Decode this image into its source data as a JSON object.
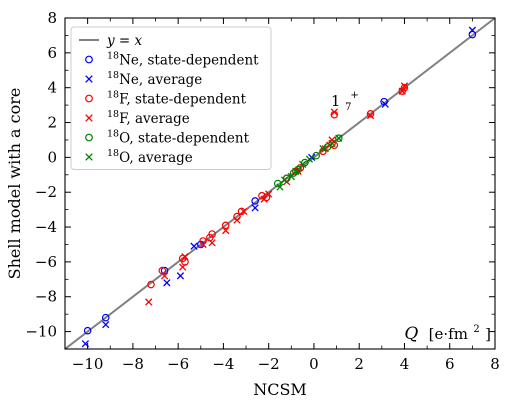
{
  "chart_data": {
    "type": "scatter",
    "xlabel": "NCSM",
    "ylabel": "Shell model with a core",
    "corner_label_main": "Q",
    "corner_label_unit_open": "[e·fm",
    "corner_label_unit_exp": "2",
    "corner_label_unit_close": "]",
    "xlim": [
      -11,
      8
    ],
    "ylim": [
      -11,
      8
    ],
    "xticks": [
      -10,
      -8,
      -6,
      -4,
      -2,
      0,
      2,
      4,
      6,
      8
    ],
    "yticks": [
      -10,
      -8,
      -6,
      -4,
      -2,
      0,
      2,
      4,
      6,
      8
    ],
    "xtick_labels": [
      "−10",
      "−8",
      "−6",
      "−4",
      "−2",
      "0",
      "2",
      "4",
      "6",
      "8"
    ],
    "ytick_labels": [
      "−10",
      "−8",
      "−6",
      "−4",
      "−2",
      "0",
      "2",
      "4",
      "6",
      "8"
    ],
    "grid": false,
    "legend_position": "top-left",
    "reference_line": {
      "name": "y = x",
      "name_italic_1": "y",
      "name_mid": " = ",
      "name_italic_2": "x",
      "color": "#808080"
    },
    "annotation": {
      "text": "1",
      "sub": "7",
      "sup": "+",
      "x": 1.1,
      "y": 2.95
    },
    "series": [
      {
        "name": "Ne, state-dependent",
        "iso_mass": "18",
        "marker": "circle",
        "color": "#0000ff",
        "points": [
          [
            -10,
            -9.95
          ],
          [
            -9.2,
            -9.2
          ],
          [
            -6.6,
            -6.5
          ],
          [
            -5,
            -5
          ],
          [
            -2.6,
            -2.5
          ],
          [
            3.1,
            3.2
          ],
          [
            7,
            7.05
          ]
        ]
      },
      {
        "name": "Ne, average",
        "iso_mass": "18",
        "marker": "x",
        "color": "#0000ff",
        "points": [
          [
            -10.1,
            -10.7
          ],
          [
            -9.2,
            -9.6
          ],
          [
            -6.5,
            -7.2
          ],
          [
            -5.9,
            -6.8
          ],
          [
            -5.3,
            -5.1
          ],
          [
            -2.6,
            -2.9
          ],
          [
            -0.1,
            0
          ],
          [
            3.15,
            3.05
          ],
          [
            7,
            7.3
          ]
        ]
      },
      {
        "name": "F, state-dependent",
        "iso_mass": "18",
        "marker": "circle",
        "color": "#ff0000",
        "points": [
          [
            -7.2,
            -7.3
          ],
          [
            -6.7,
            -6.5
          ],
          [
            -5.8,
            -5.8
          ],
          [
            -5.7,
            -6
          ],
          [
            -4.9,
            -4.8
          ],
          [
            -4.6,
            -4.6
          ],
          [
            -4.5,
            -4.4
          ],
          [
            -3.9,
            -3.9
          ],
          [
            -3.4,
            -3.4
          ],
          [
            -3.2,
            -3.1
          ],
          [
            -2.3,
            -2.2
          ],
          [
            -2.1,
            -2.3
          ],
          [
            -1.2,
            -1.2
          ],
          [
            -0.8,
            -0.8
          ],
          [
            -0.6,
            -0.6
          ],
          [
            0.4,
            0.35
          ],
          [
            0.8,
            0.8
          ],
          [
            0.9,
            0.7
          ],
          [
            0.9,
            2.45
          ],
          [
            2.5,
            2.5
          ],
          [
            3.9,
            3.8
          ],
          [
            4,
            4
          ]
        ]
      },
      {
        "name": "F, average",
        "iso_mass": "18",
        "marker": "x",
        "color": "#ff0000",
        "points": [
          [
            -7.3,
            -8.3
          ],
          [
            -6.6,
            -6.8
          ],
          [
            -5.8,
            -6.3
          ],
          [
            -5.7,
            -5.7
          ],
          [
            -4.9,
            -5
          ],
          [
            -4.5,
            -4.9
          ],
          [
            -3.9,
            -4.2
          ],
          [
            -3.4,
            -3.6
          ],
          [
            -3.1,
            -3.1
          ],
          [
            -2.2,
            -2.4
          ],
          [
            -2,
            -2.1
          ],
          [
            -1.2,
            -1.4
          ],
          [
            -0.7,
            -0.8
          ],
          [
            0.5,
            0.5
          ],
          [
            0.7,
            0.7
          ],
          [
            0.8,
            1
          ],
          [
            0.9,
            2.6
          ],
          [
            2.5,
            2.4
          ],
          [
            3.9,
            3.8
          ],
          [
            4,
            4.1
          ]
        ]
      },
      {
        "name": "O, state-dependent",
        "iso_mass": "18",
        "marker": "circle",
        "color": "#008000",
        "points": [
          [
            -1.6,
            -1.5
          ],
          [
            -1.2,
            -1.2
          ],
          [
            -0.9,
            -0.9
          ],
          [
            -0.7,
            -0.7
          ],
          [
            -0.4,
            -0.3
          ],
          [
            0.1,
            0.1
          ],
          [
            0.6,
            0.6
          ],
          [
            1.1,
            1.1
          ]
        ]
      },
      {
        "name": "O, average",
        "iso_mass": "18",
        "marker": "x",
        "color": "#008000",
        "points": [
          [
            -1.5,
            -1.7
          ],
          [
            -1.3,
            -1.3
          ],
          [
            -1,
            -1.1
          ],
          [
            -0.8,
            -0.8
          ],
          [
            -0.5,
            -0.4
          ],
          [
            -0.2,
            -0.1
          ],
          [
            0.4,
            0.5
          ],
          [
            0.8,
            0.8
          ],
          [
            1.1,
            1.1
          ]
        ]
      }
    ]
  }
}
